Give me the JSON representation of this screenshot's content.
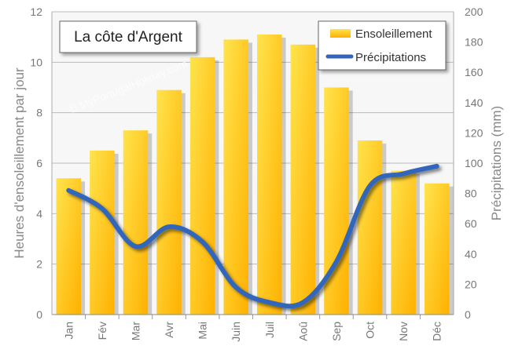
{
  "chart_data": {
    "type": "bar",
    "title": "La côte d'Argent",
    "watermark": "© MyPortugalHoliday.com",
    "categories": [
      "Jan",
      "Fév",
      "Mar",
      "Avr",
      "Mai",
      "Juin",
      "Juil",
      "Aoû",
      "Sep",
      "Oct",
      "Nov",
      "Déc"
    ],
    "series": [
      {
        "name": "Ensoleillement",
        "type": "bar",
        "axis": "left",
        "values": [
          5.4,
          6.5,
          7.3,
          8.9,
          10.2,
          10.9,
          11.1,
          10.7,
          9.0,
          6.9,
          5.7,
          5.2
        ]
      },
      {
        "name": "Précipitations",
        "type": "line",
        "axis": "right",
        "values": [
          82,
          70,
          45,
          58,
          48,
          18,
          8,
          8,
          35,
          85,
          93,
          98
        ]
      }
    ],
    "ylabel": "Heures d'ensoleillement par jour",
    "y2label": "Précipitations (mm)",
    "ylim": [
      0,
      12
    ],
    "yticks": [
      0,
      2,
      4,
      6,
      8,
      10,
      12
    ],
    "y2lim": [
      0,
      200
    ],
    "y2ticks": [
      0,
      20,
      40,
      60,
      80,
      100,
      120,
      140,
      160,
      180,
      200
    ],
    "grid": true,
    "legend_position": "top-right",
    "colors": {
      "bar_top": "#ffe44d",
      "bar_bottom": "#ffb000",
      "line": "#3366bb",
      "grid": "#bbbbbb",
      "plot_bg": "#f7f7f7"
    }
  }
}
